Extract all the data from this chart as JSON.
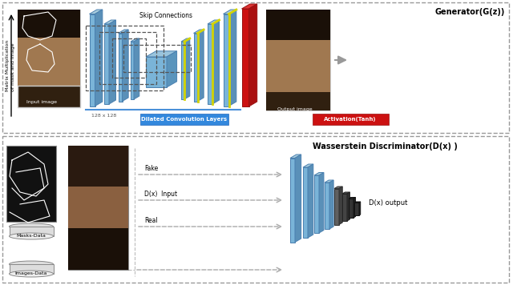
{
  "title_generator": "Generator(G(z))",
  "title_discriminator": "Wasserstein Discriminator(D(x) )",
  "label_skip": "Skip Connections",
  "label_input": "Input image",
  "label_output": "Output image",
  "label_128": "128 x 128",
  "label_dilated": "Dilated Convolution Layers",
  "label_activation": "Activation(Tanh)",
  "label_matrix_mult": "Matrix Multiplication\nof mask and image",
  "label_masks": "Masks-Data",
  "label_images": "Images-Data",
  "label_fake": "Fake",
  "label_dx_input": "D(x)  Input",
  "label_real": "Real",
  "label_dx_output": "D(x) output",
  "blue_layer": "#7ab4d8",
  "blue_edge": "#4a80b0",
  "blue_top": "#a8ccdd",
  "blue_side": "#5a90b8",
  "yellow": "#d4d400",
  "red_face": "#cc1111",
  "red_edge": "#991111",
  "dark1": "#606060",
  "dark2": "#444444",
  "dark3": "#333333"
}
